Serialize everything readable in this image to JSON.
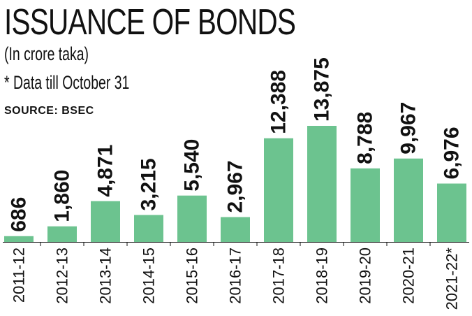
{
  "header": {
    "title": "ISSUANCE OF BONDS",
    "subtitle": "(In crore taka)",
    "note": "* Data till October 31",
    "source": "SOURCE: BSEC"
  },
  "colors": {
    "bar": "#6cc38f",
    "text": "#111111",
    "axis": "#111111"
  },
  "chart_data": {
    "type": "bar",
    "title": "ISSUANCE OF BONDS",
    "ylabel": "(In crore taka)",
    "xlabel": "",
    "categories": [
      "2011-12",
      "2012-13",
      "2013-14",
      "2014-15",
      "2015-16",
      "2016-17",
      "2017-18",
      "2018-19",
      "2019-20",
      "2020-21",
      "2021-22*"
    ],
    "values": [
      686,
      1860,
      4871,
      3215,
      5540,
      2967,
      12388,
      13875,
      8788,
      9967,
      6976
    ],
    "value_labels": [
      "686",
      "1,860",
      "4,871",
      "3,215",
      "5,540",
      "2,967",
      "12,388",
      "13,875",
      "8,788",
      "9,967",
      "6,976"
    ],
    "ylim": [
      0,
      13875
    ],
    "grid": false,
    "legend": "none"
  }
}
